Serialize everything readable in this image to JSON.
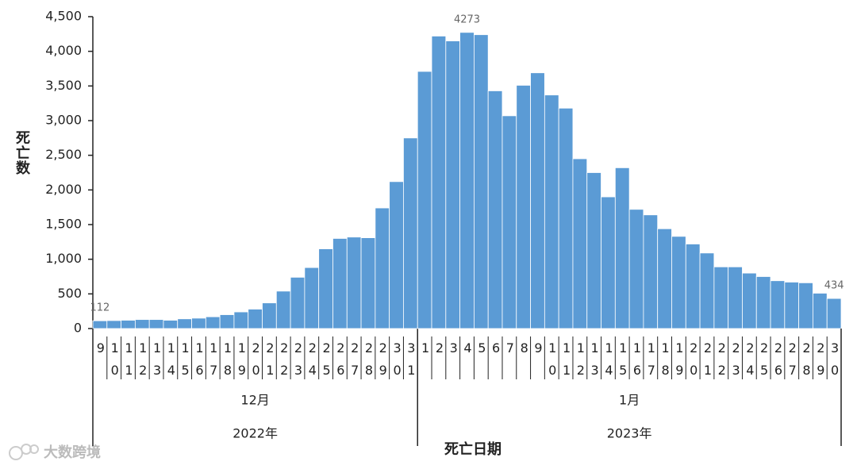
{
  "chart_data": {
    "type": "bar",
    "y_label": "死亡数",
    "x_label": "死亡日期",
    "color": "#5b9bd5",
    "watermark": "大数跨境",
    "ylim": [
      0,
      4500
    ],
    "yticks": [
      0,
      500,
      {
        "value": 1000,
        "label": "1,000"
      },
      {
        "value": 1500,
        "label": "1,500"
      },
      {
        "value": 2000,
        "label": "2,000"
      },
      {
        "value": 2500,
        "label": "2,500"
      },
      {
        "value": 3000,
        "label": "3,000"
      },
      {
        "value": 3500,
        "label": "3,500"
      },
      {
        "value": 4000,
        "label": "4,000"
      },
      {
        "value": 4500,
        "label": "4,500"
      }
    ],
    "groups": [
      {
        "label": "12月",
        "year": "2022年",
        "categories": [
          "9",
          "10",
          "11",
          "12",
          "13",
          "14",
          "15",
          "16",
          "17",
          "18",
          "19",
          "20",
          "21",
          "22",
          "23",
          "24",
          "25",
          "26",
          "27",
          "28",
          "29",
          "30",
          "31"
        ],
        "values": [
          112,
          115,
          120,
          130,
          130,
          120,
          140,
          150,
          170,
          200,
          240,
          280,
          370,
          540,
          740,
          880,
          1150,
          1300,
          1320,
          1310,
          1740,
          2120,
          2750
        ]
      },
      {
        "label": "1月",
        "year": "2023年",
        "categories": [
          "1",
          "2",
          "3",
          "4",
          "5",
          "6",
          "7",
          "8",
          "9",
          "10",
          "11",
          "12",
          "13",
          "14",
          "15",
          "16",
          "17",
          "18",
          "19",
          "20",
          "21",
          "22",
          "23",
          "24",
          "25",
          "26",
          "27",
          "28",
          "29",
          "30"
        ],
        "values": [
          3710,
          4220,
          4150,
          4273,
          4240,
          3430,
          3070,
          3510,
          3690,
          3370,
          3180,
          2450,
          2250,
          1900,
          2320,
          1720,
          1640,
          1440,
          1330,
          1220,
          1090,
          890,
          890,
          800,
          750,
          690,
          670,
          660,
          510,
          434
        ]
      }
    ]
  }
}
